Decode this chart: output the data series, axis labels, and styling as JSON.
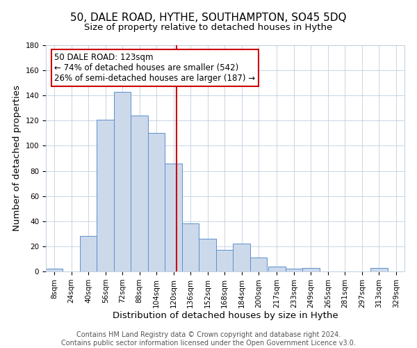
{
  "title": "50, DALE ROAD, HYTHE, SOUTHAMPTON, SO45 5DQ",
  "subtitle": "Size of property relative to detached houses in Hythe",
  "xlabel": "Distribution of detached houses by size in Hythe",
  "ylabel": "Number of detached properties",
  "bin_labels": [
    "8sqm",
    "24sqm",
    "40sqm",
    "56sqm",
    "72sqm",
    "88sqm",
    "104sqm",
    "120sqm",
    "136sqm",
    "152sqm",
    "168sqm",
    "184sqm",
    "200sqm",
    "217sqm",
    "233sqm",
    "249sqm",
    "265sqm",
    "281sqm",
    "297sqm",
    "313sqm",
    "329sqm"
  ],
  "bar_heights": [
    2,
    0,
    28,
    121,
    143,
    124,
    110,
    86,
    38,
    26,
    17,
    22,
    11,
    4,
    2,
    3,
    0,
    0,
    0,
    3,
    0
  ],
  "bar_color": "#ccd9eb",
  "bar_edge_color": "#5b8fcc",
  "property_label": "50 DALE ROAD: 123sqm",
  "annotation_line1": "← 74% of detached houses are smaller (542)",
  "annotation_line2": "26% of semi-detached houses are larger (187) →",
  "vline_color": "#cc0000",
  "vline_x": 123,
  "box_edge_color": "#cc0000",
  "footnote1": "Contains HM Land Registry data © Crown copyright and database right 2024.",
  "footnote2": "Contains public sector information licensed under the Open Government Licence v3.0.",
  "background_color": "#ffffff",
  "grid_color": "#c0cfe0",
  "ylim": [
    0,
    180
  ],
  "bin_width": 16,
  "title_fontsize": 11,
  "subtitle_fontsize": 9.5,
  "axis_label_fontsize": 9.5,
  "tick_fontsize": 7.5,
  "footnote_fontsize": 7,
  "annotation_fontsize": 8.5
}
